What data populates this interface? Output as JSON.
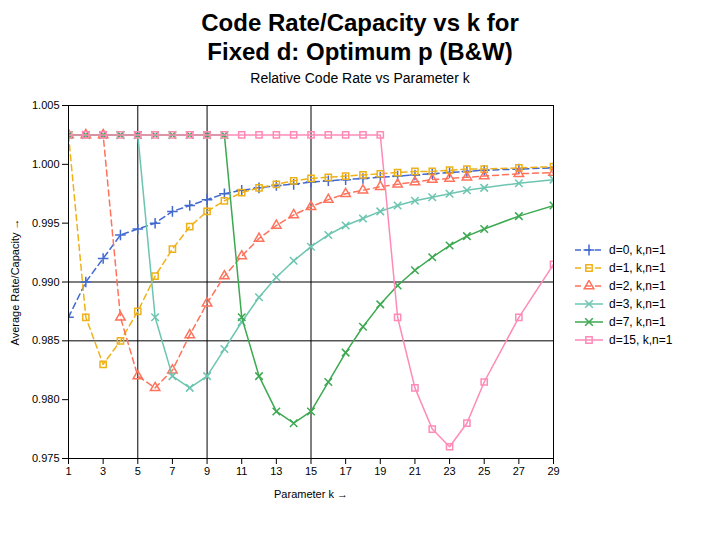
{
  "chart_data": {
    "type": "line",
    "title": "Code Rate/Capacity vs k for\nFixed d: Optimum p (B&W)",
    "subtitle": "Relative Code Rate vs Parameter k",
    "xlabel": "Parameter k",
    "ylabel": "Average Rate/Capacity",
    "xlim": [
      1,
      29
    ],
    "ylim": [
      0.975,
      1.005
    ],
    "xticks": [
      1,
      3,
      5,
      7,
      9,
      11,
      13,
      15,
      17,
      19,
      21,
      23,
      25,
      27,
      29
    ],
    "yticks": [
      0.975,
      {
        "value": 0.98,
        "label": "0.980"
      },
      0.985,
      {
        "value": 0.99,
        "label": "0.990"
      },
      0.995,
      {
        "value": 1.0,
        "label": "1.000"
      },
      1.005
    ],
    "grid": false,
    "legend": "right",
    "vlines": [
      5,
      9,
      15
    ],
    "hlines": [
      0.99,
      0.985
    ],
    "x": [
      1,
      2,
      3,
      4,
      5,
      6,
      7,
      8,
      9,
      10,
      11,
      12,
      13,
      14,
      15,
      16,
      17,
      18,
      19,
      20,
      21,
      22,
      23,
      24,
      25,
      27,
      29
    ],
    "series": [
      {
        "name": "d=0, k,n=1",
        "marker": "plus",
        "line_style": "dashed",
        "values": [
          0.987,
          0.99,
          0.992,
          0.994,
          0.9945,
          0.995,
          0.996,
          0.9965,
          0.997,
          0.9975,
          0.9978,
          0.998,
          0.9982,
          0.9983,
          0.9985,
          0.9986,
          0.9987,
          0.9988,
          0.9989,
          0.999,
          0.9991,
          0.9992,
          0.9993,
          0.9994,
          0.9995,
          0.9996,
          0.9997
        ]
      },
      {
        "name": "d=1, k,n=1",
        "marker": "square",
        "line_style": "dashed",
        "values": [
          1.0025,
          0.987,
          0.983,
          0.985,
          0.9875,
          0.9905,
          0.9928,
          0.9947,
          0.996,
          0.9969,
          0.9976,
          0.998,
          0.9983,
          0.9986,
          0.9988,
          0.9989,
          0.999,
          0.9991,
          0.9992,
          0.9993,
          0.9994,
          0.9994,
          0.9995,
          0.9996,
          0.9996,
          0.9997,
          0.9998
        ]
      },
      {
        "name": "d=2, k,n=1",
        "marker": "triangle",
        "line_style": "dashed",
        "values": [
          1.0025,
          1.0025,
          1.0025,
          0.987,
          0.982,
          0.981,
          0.9825,
          0.9855,
          0.9882,
          0.9905,
          0.9922,
          0.9937,
          0.9948,
          0.9957,
          0.9964,
          0.997,
          0.9975,
          0.9978,
          0.9981,
          0.9983,
          0.9985,
          0.9987,
          0.9988,
          0.9989,
          0.999,
          0.9992,
          0.9993
        ]
      },
      {
        "name": "d=3, k,n=1",
        "marker": "times",
        "line_style": "solid",
        "values": [
          1.0025,
          1.0025,
          1.0025,
          1.0025,
          1.0025,
          0.987,
          0.982,
          0.981,
          0.982,
          0.9843,
          0.9866,
          0.9887,
          0.9904,
          0.9918,
          0.993,
          0.994,
          0.9948,
          0.9954,
          0.996,
          0.9965,
          0.9969,
          0.9972,
          0.9975,
          0.9978,
          0.998,
          0.9984,
          0.9987
        ]
      },
      {
        "name": "d=7, k,n=1",
        "marker": "times",
        "line_style": "solid",
        "values": [
          1.0025,
          1.0025,
          1.0025,
          1.0025,
          1.0025,
          1.0025,
          1.0025,
          1.0025,
          1.0025,
          1.0025,
          0.987,
          0.982,
          0.979,
          0.978,
          0.979,
          0.9815,
          0.984,
          0.9862,
          0.9881,
          0.9897,
          0.991,
          0.9921,
          0.9931,
          0.9939,
          0.9945,
          0.9956,
          0.9965
        ]
      },
      {
        "name": "d=15, k,n=1",
        "marker": "square",
        "line_style": "solid",
        "values": [
          1.0025,
          1.0025,
          1.0025,
          1.0025,
          1.0025,
          1.0025,
          1.0025,
          1.0025,
          1.0025,
          1.0025,
          1.0025,
          1.0025,
          1.0025,
          1.0025,
          1.0025,
          1.0025,
          1.0025,
          1.0025,
          1.0025,
          0.987,
          0.981,
          0.9775,
          0.976,
          0.978,
          0.9815,
          0.987,
          0.9915
        ]
      }
    ]
  }
}
